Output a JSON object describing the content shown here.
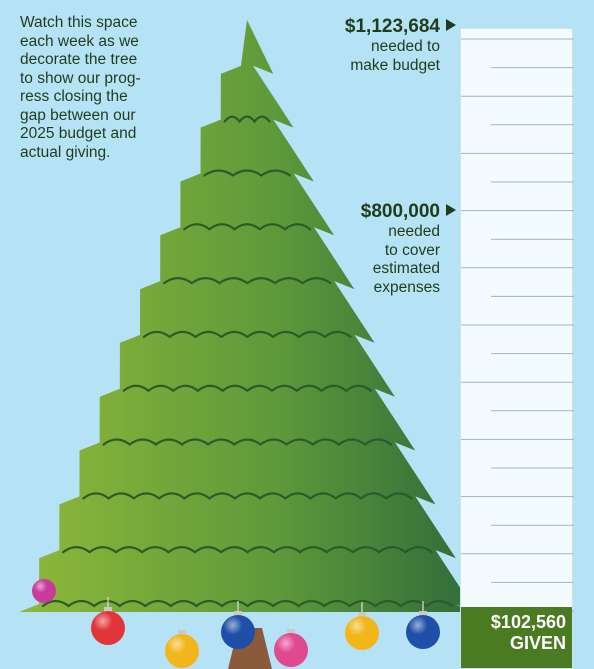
{
  "intro_text": "Watch this space each week as we decorate the tree to show our progress closing the gap between our 2025 budget and actual giving.",
  "intro_lines": [
    "Watch this space",
    "each week as we",
    "decorate the tree",
    "to show our prog-",
    "ress closing the",
    "gap between our",
    "2025 budget and",
    "actual giving."
  ],
  "goals": [
    {
      "amount": "$1,123,684",
      "lines": [
        "needed to",
        "make budget"
      ]
    },
    {
      "amount": "$800,000",
      "lines": [
        "needed",
        "to cover",
        "estimated",
        "expenses"
      ]
    }
  ],
  "progress": {
    "given_amount": "$102,560",
    "given_label": "GIVEN",
    "given_value": 102560,
    "goal_value": 1123684
  },
  "colors": {
    "background": "#b6e2f6",
    "text": "#1f3d1a",
    "fill": "#4a7a22",
    "tree_light": "#8fb83a",
    "tree_dark": "#2f6b3a"
  },
  "ornaments": [
    {
      "color": "#e0363a"
    },
    {
      "color": "#f2b51a"
    },
    {
      "color": "#1f4fa8"
    },
    {
      "color": "#e0488f"
    },
    {
      "color": "#f2b51a"
    },
    {
      "color": "#1f4fa8"
    },
    {
      "color": "#c83a9c"
    }
  ]
}
